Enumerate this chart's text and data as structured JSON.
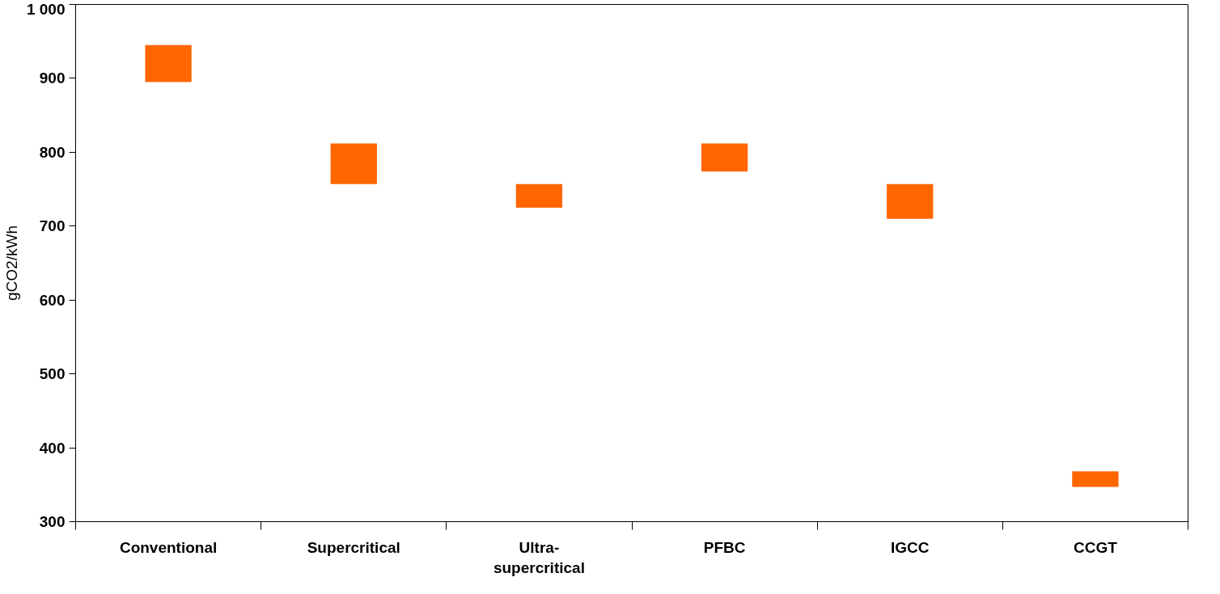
{
  "chart_data": {
    "type": "bar",
    "ylabel": "gCO2/kWh",
    "categories": [
      "Conventional",
      "Supercritical",
      "Ultra-supercritical",
      "PFBC",
      "IGCC",
      "CCGT"
    ],
    "base": [
      895,
      757,
      725,
      774,
      710,
      347
    ],
    "values": [
      50,
      55,
      32,
      38,
      47,
      21
    ],
    "color": "#ff6600",
    "ylim": [
      300,
      1000
    ],
    "yticks": [
      300,
      400,
      500,
      600,
      700,
      800,
      900,
      {
        "value": 1000,
        "label": "1 000"
      }
    ],
    "grid": false
  }
}
